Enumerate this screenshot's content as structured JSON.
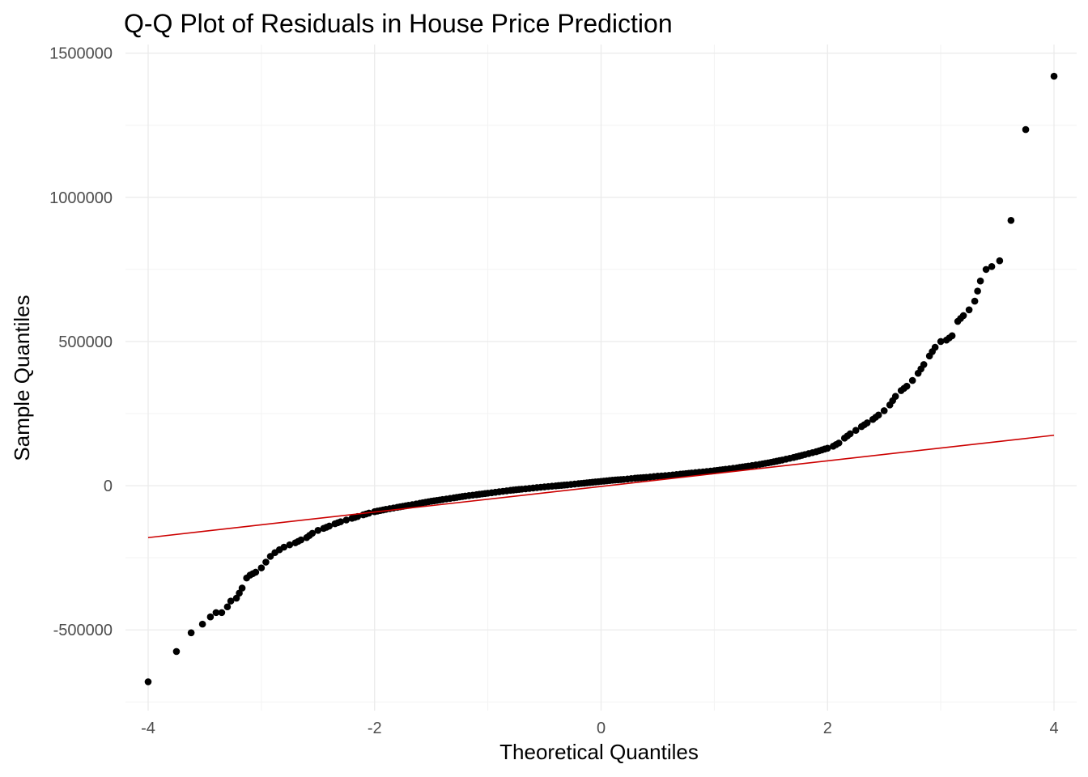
{
  "chart_data": {
    "type": "scatter",
    "title": "Q-Q Plot of Residuals in House Price Prediction",
    "xlabel": "Theoretical Quantiles",
    "ylabel": "Sample Quantiles",
    "xlim": [
      -4.2,
      4.2
    ],
    "ylim": [
      -780000,
      1530000
    ],
    "x_ticks": [
      -4,
      -2,
      0,
      2,
      4
    ],
    "x_tick_labels": [
      "-4",
      "-2",
      "0",
      "2",
      "4"
    ],
    "y_ticks": [
      -500000,
      0,
      500000,
      1000000,
      1500000
    ],
    "y_tick_labels": [
      "-500000",
      "0",
      "500000",
      "1000000",
      "1500000"
    ],
    "grid": true,
    "colors": {
      "points": "#000000",
      "reference_line": "#cc0000"
    },
    "reference_line": {
      "x": [
        -4.0,
        4.0
      ],
      "y": [
        -180000,
        175000
      ]
    },
    "series": [
      {
        "x": [
          -4.0,
          -3.75,
          -3.62,
          -3.52,
          -3.45,
          -3.4,
          -3.35,
          -3.3,
          -3.27,
          -3.22,
          -3.17,
          -3.13,
          -3.1,
          -3.05,
          -3.0,
          -2.96,
          -2.92,
          -2.88,
          -2.84,
          -2.8,
          -2.75,
          -2.7,
          -2.65,
          -2.6,
          -2.55,
          -2.5,
          -2.45,
          -2.4,
          -2.35,
          -2.3,
          -2.25,
          -2.2,
          -2.15,
          -2.1,
          -2.05,
          -2.0,
          -1.9,
          -1.8,
          -1.7,
          -1.6,
          -1.5,
          -1.4,
          -1.3,
          -1.2,
          -1.1,
          -1.0,
          -0.9,
          -0.8,
          -0.7,
          -0.6,
          -0.5,
          -0.4,
          -0.3,
          -0.2,
          -0.1,
          0.0,
          0.1,
          0.2,
          0.3,
          0.4,
          0.5,
          0.6,
          0.7,
          0.8,
          0.9,
          1.0,
          1.1,
          1.2,
          1.3,
          1.4,
          1.5,
          1.6,
          1.7,
          1.8,
          1.9,
          2.0,
          2.05,
          2.1,
          2.15,
          2.2,
          2.25,
          2.3,
          2.35,
          2.4,
          2.45,
          2.5,
          2.55,
          2.6,
          2.65,
          2.7,
          2.75,
          2.8,
          2.85,
          2.9,
          2.95,
          3.0,
          3.05,
          3.1,
          3.15,
          3.2,
          3.25,
          3.3,
          3.35,
          3.4,
          3.45,
          3.52,
          3.62,
          3.75,
          4.0
        ],
        "y": [
          -680000,
          -575000,
          -510000,
          -480000,
          -455000,
          -440000,
          -440000,
          -420000,
          -400000,
          -390000,
          -355000,
          -320000,
          -310000,
          -300000,
          -285000,
          -265000,
          -245000,
          -232000,
          -222000,
          -213000,
          -205000,
          -198000,
          -188000,
          -180000,
          -165000,
          -155000,
          -148000,
          -140000,
          -132000,
          -125000,
          -119000,
          -113000,
          -107000,
          -101000,
          -95000,
          -90000,
          -82000,
          -75000,
          -68000,
          -61000,
          -54000,
          -48000,
          -42000,
          -36000,
          -31000,
          -26000,
          -21000,
          -16000,
          -12000,
          -8000,
          -4000,
          -500,
          3000,
          7000,
          11000,
          15000,
          19000,
          22000,
          26000,
          29000,
          33000,
          36000,
          40000,
          44000,
          48000,
          52000,
          57000,
          62000,
          68000,
          74000,
          81000,
          89000,
          98000,
          108000,
          118000,
          130000,
          137000,
          148000,
          165000,
          180000,
          192000,
          205000,
          218000,
          230000,
          245000,
          260000,
          280000,
          310000,
          330000,
          345000,
          365000,
          390000,
          420000,
          450000,
          480000,
          500000,
          505000,
          520000,
          570000,
          590000,
          610000,
          640000,
          710000,
          750000,
          760000,
          780000,
          920000,
          1235000,
          1420000
        ]
      }
    ]
  }
}
